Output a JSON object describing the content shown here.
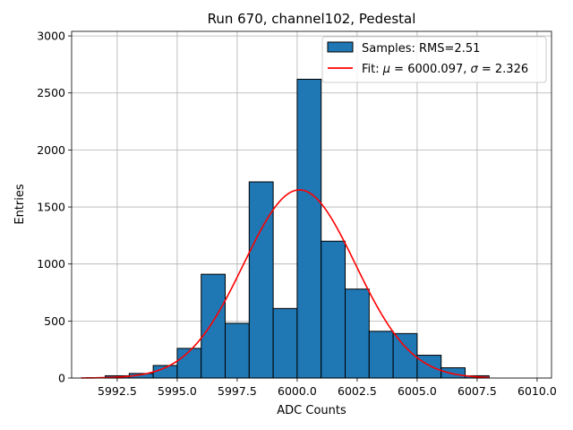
{
  "chart_data": {
    "type": "bar",
    "title": "Run 670, channel102, Pedestal",
    "xlabel": "ADC Counts",
    "ylabel": "Entries",
    "xlim": [
      5990.6,
      6010.6
    ],
    "ylim": [
      0,
      3040
    ],
    "grid": true,
    "legend_position": "top-right",
    "xticks": [
      {
        "value": 5992.5,
        "label": "5992.5"
      },
      {
        "value": 5995.0,
        "label": "5995.0"
      },
      {
        "value": 5997.5,
        "label": "5997.5"
      },
      {
        "value": 6000.0,
        "label": "6000.0"
      },
      {
        "value": 6002.5,
        "label": "6002.5"
      },
      {
        "value": 6005.0,
        "label": "6005.0"
      },
      {
        "value": 6007.5,
        "label": "6007.5"
      },
      {
        "value": 6010.0,
        "label": "6010.0"
      }
    ],
    "yticks": [
      {
        "value": 0,
        "label": "0"
      },
      {
        "value": 500,
        "label": "500"
      },
      {
        "value": 1000,
        "label": "1000"
      },
      {
        "value": 1500,
        "label": "1500"
      },
      {
        "value": 2000,
        "label": "2000"
      },
      {
        "value": 2500,
        "label": "2500"
      },
      {
        "value": 3000,
        "label": "3000"
      }
    ],
    "series": [
      {
        "name": "Samples: RMS=2.51",
        "type": "histogram",
        "color": "#1f77b4",
        "bins": [
          {
            "start": 5992.0,
            "end": 5993.0,
            "count": 20
          },
          {
            "start": 5993.0,
            "end": 5994.0,
            "count": 40
          },
          {
            "start": 5994.0,
            "end": 5995.0,
            "count": 110
          },
          {
            "start": 5995.0,
            "end": 5996.0,
            "count": 260
          },
          {
            "start": 5996.0,
            "end": 5997.0,
            "count": 910
          },
          {
            "start": 5997.0,
            "end": 5998.0,
            "count": 480
          },
          {
            "start": 5998.0,
            "end": 5999.0,
            "count": 1720
          },
          {
            "start": 5999.0,
            "end": 6000.0,
            "count": 610
          },
          {
            "start": 6000.0,
            "end": 6001.0,
            "count": 2620
          },
          {
            "start": 6001.0,
            "end": 6002.0,
            "count": 1200
          },
          {
            "start": 6002.0,
            "end": 6003.0,
            "count": 780
          },
          {
            "start": 6003.0,
            "end": 6004.0,
            "count": 410
          },
          {
            "start": 6004.0,
            "end": 6005.0,
            "count": 390
          },
          {
            "start": 6005.0,
            "end": 6006.0,
            "count": 200
          },
          {
            "start": 6006.0,
            "end": 6007.0,
            "count": 90
          },
          {
            "start": 6007.0,
            "end": 6008.0,
            "count": 20
          }
        ]
      },
      {
        "name": "Fit: μ = 6000.097, σ = 2.326",
        "type": "line",
        "color": "#ff0000",
        "gaussian": {
          "mu": 6000.097,
          "sigma": 2.326,
          "amplitude": 1650
        },
        "x_range": [
          5991.0,
          6008.0
        ]
      }
    ],
    "legend": {
      "samples_label": "Samples: RMS=2.51",
      "fit_prefix": "Fit: ",
      "mu_symbol": "μ",
      "mu_value": " = 6000.097, ",
      "sigma_symbol": "σ",
      "sigma_value": " = 2.326"
    }
  }
}
